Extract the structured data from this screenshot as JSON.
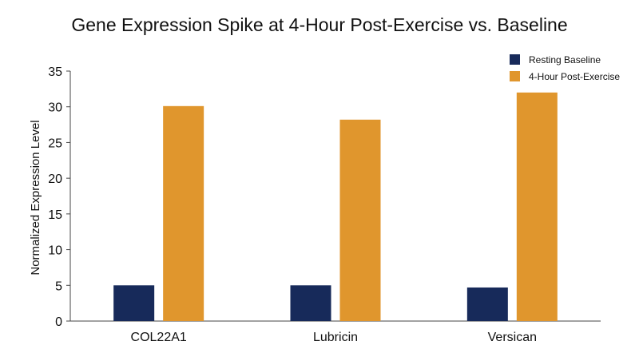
{
  "chart_data": {
    "type": "bar",
    "title": "Gene Expression Spike at 4-Hour Post-Exercise vs. Baseline",
    "xlabel": "",
    "ylabel": "Normalized Expression Level",
    "categories": [
      "COL22A1",
      "Lubricin",
      "Versican"
    ],
    "series": [
      {
        "name": "Resting Baseline",
        "values": [
          5.0,
          5.0,
          4.7
        ],
        "color": "#172a5a"
      },
      {
        "name": "4-Hour Post-Exercise",
        "values": [
          30.1,
          28.2,
          32.0
        ],
        "color": "#e0962d"
      }
    ],
    "ylim": [
      0,
      35
    ],
    "yticks": [
      0,
      5,
      10,
      15,
      20,
      25,
      30,
      35
    ],
    "grid": false,
    "legend": "top-right"
  }
}
